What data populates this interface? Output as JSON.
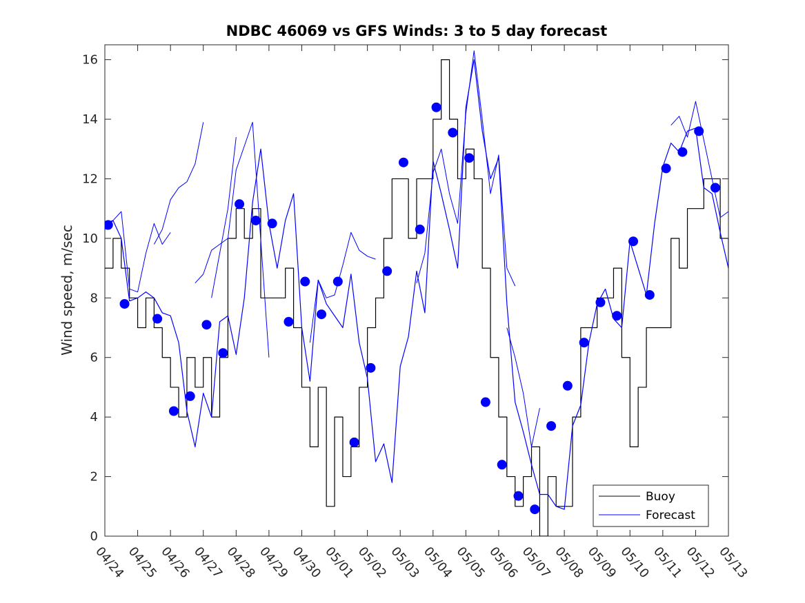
{
  "chart_data": {
    "type": "line",
    "title": "NDBC 46069 vs GFS Winds: 3 to 5 day forecast",
    "xlabel": "",
    "ylabel": "Wind speed, m/sec",
    "xlim": [
      0,
      19
    ],
    "ylim": [
      0,
      16.5
    ],
    "grid": false,
    "legend_position": "bottom-right",
    "x_tick_labels": [
      "04/24",
      "04/25",
      "04/26",
      "04/27",
      "04/28",
      "04/29",
      "04/30",
      "05/01",
      "05/02",
      "05/03",
      "05/04",
      "05/05",
      "05/06",
      "05/07",
      "05/08",
      "05/09",
      "05/10",
      "05/11",
      "05/12",
      "05/13"
    ],
    "y_ticks": [
      0,
      2,
      4,
      6,
      8,
      10,
      12,
      14,
      16
    ],
    "colors": {
      "buoy": "#000000",
      "forecast": "#0000ff",
      "axes": "#262626"
    },
    "series": [
      {
        "name": "Buoy",
        "style": "stepped-line",
        "x": [
          0.0,
          0.25,
          0.5,
          0.75,
          1.0,
          1.25,
          1.5,
          1.75,
          2.0,
          2.25,
          2.5,
          2.75,
          3.0,
          3.25,
          3.5,
          3.75,
          4.0,
          4.25,
          4.5,
          4.75,
          5.0,
          5.25,
          5.5,
          5.75,
          6.0,
          6.25,
          6.5,
          6.75,
          7.0,
          7.25,
          7.5,
          7.75,
          8.0,
          8.25,
          8.5,
          8.75,
          9.0,
          9.25,
          9.5,
          9.75,
          10.0,
          10.25,
          10.5,
          10.75,
          11.0,
          11.25,
          11.5,
          11.75,
          12.0,
          12.25,
          12.5,
          12.75,
          13.0,
          13.25,
          13.5,
          13.75,
          14.0,
          14.25,
          14.5,
          14.75,
          15.0,
          15.25,
          15.5,
          15.75,
          16.0,
          16.25,
          16.5,
          16.75,
          17.0,
          17.25,
          17.5,
          17.75,
          18.0,
          18.25,
          18.5,
          18.75,
          19.0
        ],
        "values": [
          9,
          10,
          9,
          8,
          7,
          8,
          7,
          6,
          5,
          4,
          6,
          5,
          6,
          4,
          6,
          10,
          11,
          10,
          11,
          8,
          8,
          8,
          9,
          7,
          5,
          3,
          5,
          1,
          4,
          2,
          3,
          5,
          7,
          8,
          10,
          12,
          12,
          10,
          12,
          12,
          14,
          16,
          14,
          12,
          13,
          12,
          9,
          6,
          4,
          2,
          1,
          2,
          3,
          0,
          2,
          1,
          1,
          4,
          7,
          7,
          8,
          8,
          9,
          6,
          3,
          5,
          7,
          7,
          7,
          10,
          9,
          11,
          11,
          12,
          12,
          10,
          9
        ]
      },
      {
        "name": "Forecast",
        "style": "line",
        "x": [
          0.0,
          0.25,
          0.5,
          0.75,
          1.0,
          1.25,
          1.5,
          1.75,
          2.0,
          2.25,
          2.5,
          2.75,
          3.0,
          3.25,
          3.5,
          3.75,
          4.0,
          4.25,
          4.5,
          4.75,
          5.0,
          5.25,
          5.5,
          5.75,
          6.0,
          6.25,
          6.5,
          6.75,
          7.0,
          7.25,
          7.5,
          7.75,
          8.0,
          8.25,
          8.5,
          8.75,
          9.0,
          9.25,
          9.5,
          9.75,
          10.0,
          10.25,
          10.5,
          10.75,
          11.0,
          11.25,
          11.5,
          11.75,
          12.0,
          12.25,
          12.5,
          12.75,
          13.0,
          13.25,
          13.5,
          13.75,
          14.0,
          14.25,
          14.5,
          14.75,
          15.0,
          15.25,
          15.5,
          15.75,
          16.0,
          16.25,
          16.5,
          16.75,
          17.0,
          17.25,
          17.5,
          17.75,
          18.0,
          18.25,
          18.5,
          18.75,
          19.0
        ],
        "values": [
          10.5,
          10.6,
          10.0,
          7.9,
          8.0,
          8.2,
          8.0,
          7.5,
          7.4,
          6.5,
          4.2,
          3.0,
          4.8,
          4.0,
          7.2,
          7.4,
          6.1,
          8.0,
          11.2,
          13.0,
          10.5,
          9.0,
          10.6,
          11.5,
          7.0,
          5.2,
          8.6,
          7.8,
          7.4,
          7.0,
          8.8,
          6.5,
          5.3,
          2.5,
          3.1,
          1.8,
          5.7,
          6.7,
          8.9,
          7.5,
          12.6,
          11.5,
          10.3,
          9.0,
          14.4,
          16.0,
          13.6,
          12.0,
          12.7,
          7.8,
          4.5,
          3.5,
          2.4,
          1.4,
          1.4,
          1.0,
          0.9,
          3.7,
          4.4,
          6.5,
          7.8,
          8.3,
          7.3,
          7.0,
          9.9,
          9.0,
          8.1,
          10.5,
          12.4,
          13.2,
          12.9,
          13.6,
          13.7,
          11.7,
          11.5,
          10.2,
          9.0
        ]
      },
      {
        "name": "Forecast",
        "style": "line",
        "segments": [
          {
            "x": [
              0.0,
              0.25,
              0.5,
              0.75,
              1.0,
              1.25,
              1.5,
              1.75,
              2.0
            ],
            "values": [
              10.3,
              10.6,
              10.9,
              8.3,
              8.2,
              9.5,
              10.5,
              9.8,
              10.2
            ]
          },
          {
            "x": [
              1.5,
              1.75,
              2.0,
              2.25,
              2.5,
              2.75,
              3.0
            ],
            "values": [
              9.8,
              10.3,
              11.3,
              11.7,
              11.9,
              12.5,
              13.9
            ]
          },
          {
            "x": [
              2.75,
              3.0,
              3.25,
              3.5,
              3.75,
              4.0,
              4.5,
              5.0
            ],
            "values": [
              8.5,
              8.8,
              9.6,
              9.8,
              10.0,
              12.3,
              13.9,
              6.0
            ]
          },
          {
            "x": [
              3.25,
              3.5,
              3.75,
              4.0
            ],
            "values": [
              8.0,
              9.5,
              11.0,
              13.4
            ]
          },
          {
            "x": [
              6.25,
              6.5,
              6.75,
              7.0,
              7.25,
              7.5,
              7.75,
              8.0,
              8.25
            ],
            "values": [
              6.5,
              8.6,
              8.0,
              8.1,
              9.1,
              10.2,
              9.6,
              9.4,
              9.3
            ]
          },
          {
            "x": [
              12.25,
              12.5,
              12.75,
              13.0,
              13.25
            ],
            "values": [
              7.0,
              6.0,
              4.8,
              3.0,
              4.3
            ]
          },
          {
            "x": [
              9.5,
              9.75,
              10.0,
              10.25,
              10.5,
              10.75,
              11.0,
              11.25,
              11.5,
              11.75,
              12.0,
              12.25,
              12.5
            ],
            "values": [
              8.5,
              9.5,
              12.2,
              13.0,
              11.5,
              10.5,
              14.2,
              16.3,
              14.0,
              11.5,
              12.8,
              9.0,
              8.4
            ]
          },
          {
            "x": [
              17.25,
              17.5,
              17.75,
              18.0,
              18.25,
              18.5,
              18.75,
              19.0
            ],
            "values": [
              13.8,
              14.1,
              13.4,
              14.6,
              13.3,
              12.0,
              10.7,
              10.9
            ]
          }
        ]
      },
      {
        "name": "",
        "style": "markers",
        "x": [
          0.1,
          0.6,
          1.6,
          2.1,
          2.6,
          3.1,
          3.6,
          4.1,
          4.6,
          5.1,
          5.6,
          6.1,
          6.6,
          7.1,
          7.6,
          8.1,
          8.6,
          9.1,
          9.6,
          10.1,
          10.6,
          11.1,
          11.6,
          12.1,
          12.6,
          13.1,
          13.6,
          14.1,
          14.6,
          15.1,
          15.6,
          16.1,
          16.6,
          17.1,
          17.6,
          18.1,
          18.6
        ],
        "values": [
          10.45,
          7.8,
          7.3,
          4.2,
          4.7,
          7.1,
          6.15,
          11.15,
          10.6,
          10.5,
          7.2,
          8.55,
          7.45,
          8.55,
          3.15,
          5.65,
          8.9,
          12.55,
          10.3,
          14.4,
          13.55,
          12.7,
          4.5,
          2.4,
          1.35,
          0.9,
          3.7,
          5.05,
          6.5,
          7.85,
          7.4,
          9.9,
          8.1,
          12.35,
          12.9,
          13.6,
          11.7
        ]
      }
    ]
  }
}
